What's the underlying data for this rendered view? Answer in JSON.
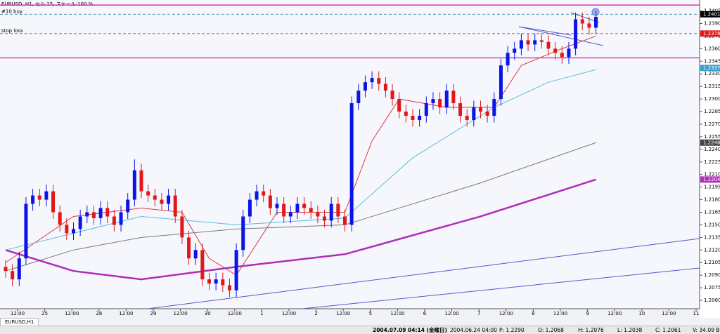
{
  "header": {
    "title": "EURUSD, H1, セル:15, スケール:100 %"
  },
  "chart_data": {
    "type": "candlestick",
    "ylim": [
      1.205,
      1.2418
    ],
    "yticks": [
      {
        "value": 1.206,
        "label": "1.2060"
      },
      1.2075,
      {
        "value": 1.209,
        "label": "1.2090"
      },
      1.2105,
      {
        "value": 1.212,
        "label": "1.2120"
      },
      1.2135,
      {
        "value": 1.215,
        "label": "1.2150"
      },
      1.2165,
      {
        "value": 1.218,
        "label": "1.2180"
      },
      1.2195,
      {
        "value": 1.221,
        "label": "1.2210"
      },
      1.2225,
      {
        "value": 1.224,
        "label": "1.2240"
      },
      1.2255,
      {
        "value": 1.227,
        "label": "1.2270"
      },
      1.2285,
      {
        "value": 1.23,
        "label": "1.2300"
      },
      1.2315,
      {
        "value": 1.233,
        "label": "1.2330"
      },
      1.2345,
      {
        "value": 1.236,
        "label": "1.2360"
      },
      1.2375,
      {
        "value": 1.239,
        "label": "1.2390"
      },
      1.2405
    ],
    "x_labels": [
      "12:00",
      "25",
      "12:00",
      "28",
      "12:00",
      "29",
      "12:00",
      "30",
      "12:00",
      "1",
      "12:00",
      "2",
      "12:00",
      "5",
      "12:00",
      "6",
      "12:00",
      "7",
      "12:00",
      "8",
      "12:00",
      "9",
      "12:00",
      "10",
      "12:00",
      "11"
    ],
    "up_color": "#0a14e6",
    "down_color": "#e01818",
    "open": [
      1.21,
      1.2095,
      1.2085,
      1.211,
      1.2175,
      1.2185,
      1.218,
      1.219,
      1.2165,
      1.215,
      1.214,
      1.2145,
      1.216,
      1.2165,
      1.2158,
      1.217,
      1.216,
      1.215,
      1.2165,
      1.218,
      1.2215,
      1.219,
      1.2185,
      1.218,
      1.2175,
      1.2185,
      1.216,
      1.2135,
      1.211,
      1.212,
      1.2085,
      1.208,
      1.2085,
      1.2078,
      1.2072,
      1.212,
      1.216,
      1.218,
      1.219,
      1.2185,
      1.217,
      1.2175,
      1.216,
      1.2165,
      1.2175,
      1.217,
      1.2165,
      1.216,
      1.2155,
      1.2175,
      1.216,
      1.215,
      1.2295,
      1.231,
      1.232,
      1.2325,
      1.2318,
      1.231,
      1.23,
      1.2285,
      1.228,
      1.2275,
      1.228,
      1.2295,
      1.23,
      1.229,
      1.231,
      1.2295,
      1.228,
      1.2275,
      1.229,
      1.2285,
      1.228,
      1.23,
      1.234,
      1.2355,
      1.236,
      1.237,
      1.2365,
      1.237,
      1.2368,
      1.236,
      1.2355,
      1.235,
      1.236,
      1.2395,
      1.239,
      1.2385
    ],
    "high": [
      1.2108,
      1.2103,
      1.2118,
      1.2183,
      1.2193,
      1.2193,
      1.2198,
      1.2198,
      1.2173,
      1.2158,
      1.2153,
      1.2168,
      1.2173,
      1.2173,
      1.2178,
      1.2178,
      1.2168,
      1.2173,
      1.2188,
      1.2228,
      1.2223,
      1.2198,
      1.2193,
      1.2188,
      1.2193,
      1.2193,
      1.2168,
      1.2143,
      1.2128,
      1.2128,
      1.2093,
      1.2093,
      1.2093,
      1.2086,
      1.2128,
      1.2168,
      1.2188,
      1.2198,
      1.2198,
      1.2193,
      1.2183,
      1.2183,
      1.2173,
      1.2183,
      1.2183,
      1.2178,
      1.2173,
      1.2168,
      1.2183,
      1.2183,
      1.2168,
      1.2303,
      1.2318,
      1.2328,
      1.2333,
      1.2333,
      1.2326,
      1.2318,
      1.2308,
      1.2293,
      1.2288,
      1.2288,
      1.2303,
      1.2308,
      1.2308,
      1.2318,
      1.2318,
      1.2303,
      1.2288,
      1.2298,
      1.2298,
      1.2293,
      1.2308,
      1.2348,
      1.2363,
      1.2368,
      1.2378,
      1.2378,
      1.2378,
      1.2378,
      1.2376,
      1.2368,
      1.2363,
      1.2368,
      1.2403,
      1.2403,
      1.2398,
      1.2406
    ],
    "low": [
      1.2087,
      1.2077,
      1.2077,
      1.2102,
      1.2167,
      1.2172,
      1.2172,
      1.2157,
      1.2142,
      1.2132,
      1.2132,
      1.2137,
      1.2152,
      1.215,
      1.215,
      1.2152,
      1.2142,
      1.2142,
      1.2157,
      1.2172,
      1.2182,
      1.2177,
      1.2172,
      1.2167,
      1.2167,
      1.2152,
      1.2127,
      1.2102,
      1.2102,
      1.2077,
      1.2072,
      1.2072,
      1.207,
      1.2064,
      1.2064,
      1.2112,
      1.2152,
      1.2172,
      1.2177,
      1.2162,
      1.2162,
      1.2152,
      1.2152,
      1.2157,
      1.2162,
      1.2157,
      1.2152,
      1.2147,
      1.2147,
      1.2152,
      1.2142,
      1.2142,
      1.2287,
      1.2302,
      1.2312,
      1.231,
      1.2302,
      1.2292,
      1.2277,
      1.2272,
      1.2267,
      1.2267,
      1.2272,
      1.2287,
      1.2282,
      1.2282,
      1.2287,
      1.2272,
      1.2267,
      1.2267,
      1.2277,
      1.2272,
      1.2272,
      1.2292,
      1.2332,
      1.2347,
      1.2352,
      1.2357,
      1.2357,
      1.236,
      1.2352,
      1.2347,
      1.2342,
      1.2342,
      1.2352,
      1.2382,
      1.2377,
      1.2377
    ],
    "close": [
      1.2095,
      1.2085,
      1.211,
      1.2175,
      1.2185,
      1.218,
      1.219,
      1.2165,
      1.215,
      1.214,
      1.2145,
      1.216,
      1.2165,
      1.2158,
      1.217,
      1.216,
      1.215,
      1.2165,
      1.218,
      1.2215,
      1.219,
      1.2185,
      1.218,
      1.2175,
      1.2185,
      1.216,
      1.2135,
      1.211,
      1.212,
      1.2085,
      1.208,
      1.2085,
      1.2078,
      1.2072,
      1.212,
      1.216,
      1.218,
      1.219,
      1.2185,
      1.217,
      1.2175,
      1.216,
      1.2165,
      1.2175,
      1.217,
      1.2165,
      1.216,
      1.2155,
      1.2175,
      1.216,
      1.215,
      1.2295,
      1.231,
      1.232,
      1.2325,
      1.2318,
      1.231,
      1.23,
      1.2285,
      1.228,
      1.2275,
      1.228,
      1.2295,
      1.23,
      1.229,
      1.231,
      1.2295,
      1.228,
      1.2275,
      1.229,
      1.2285,
      1.228,
      1.23,
      1.234,
      1.2355,
      1.236,
      1.237,
      1.2365,
      1.237,
      1.2368,
      1.236,
      1.2355,
      1.235,
      1.236,
      1.2395,
      1.239,
      1.2385,
      1.2398
    ],
    "averages": [
      {
        "color": "#e03a3a",
        "width": 1,
        "x": [
          0,
          10,
          20,
          26,
          30,
          34,
          40,
          50,
          54,
          58,
          65,
          72,
          76,
          82,
          87
        ],
        "values": [
          1.2105,
          1.216,
          1.217,
          1.2165,
          1.211,
          1.209,
          1.2165,
          1.2165,
          1.225,
          1.23,
          1.229,
          1.229,
          1.234,
          1.236,
          1.2375
        ]
      },
      {
        "color": "#5cbcdc",
        "width": 1,
        "x": [
          0,
          10,
          20,
          34,
          50,
          60,
          72,
          80,
          87
        ],
        "values": [
          1.212,
          1.214,
          1.216,
          1.215,
          1.2158,
          1.223,
          1.229,
          1.232,
          1.2335
        ]
      },
      {
        "color": "#7a7a7a",
        "width": 1,
        "x": [
          0,
          10,
          20,
          34,
          50,
          70,
          87
        ],
        "values": [
          1.2095,
          1.212,
          1.2135,
          1.2145,
          1.215,
          1.22,
          1.2248
        ]
      },
      {
        "color": "#b02cb8",
        "width": 2.5,
        "x": [
          0,
          10,
          20,
          34,
          50,
          70,
          87
        ],
        "values": [
          1.212,
          1.2095,
          1.2085,
          1.21,
          1.2115,
          1.216,
          1.2204
        ]
      }
    ],
    "levels": [
      {
        "value": 1.2412,
        "color": "#d0209a",
        "dash": false
      },
      {
        "value": 1.2349,
        "color": "#d0209a",
        "dash": false
      },
      {
        "value": 1.2401,
        "color": "#2a8aa8",
        "dash": true,
        "label": "#10 buy"
      },
      {
        "value": 1.2378,
        "color": "#d03030",
        "dash": true,
        "label": "stop loss"
      }
    ],
    "price_marks": [
      {
        "value": 1.2401,
        "color": "#000000"
      },
      {
        "value": 1.2378,
        "color": "#e01818"
      },
      {
        "value": 1.2337,
        "color": "#3aa0d0"
      },
      {
        "value": 1.2248,
        "color": "#444444"
      },
      {
        "value": 1.2204,
        "color": "#b02cb8"
      }
    ]
  },
  "tab": "EURUSD,H1",
  "status": [
    "2004.07.09 04:14 (金曜日)",
    "2004.06.24 04:00",
    "P: 1.2290",
    "O: 1.2068",
    "H: 1.2076",
    "L: 1.2038",
    "C: 1.2061",
    "V: 34.09 B"
  ]
}
